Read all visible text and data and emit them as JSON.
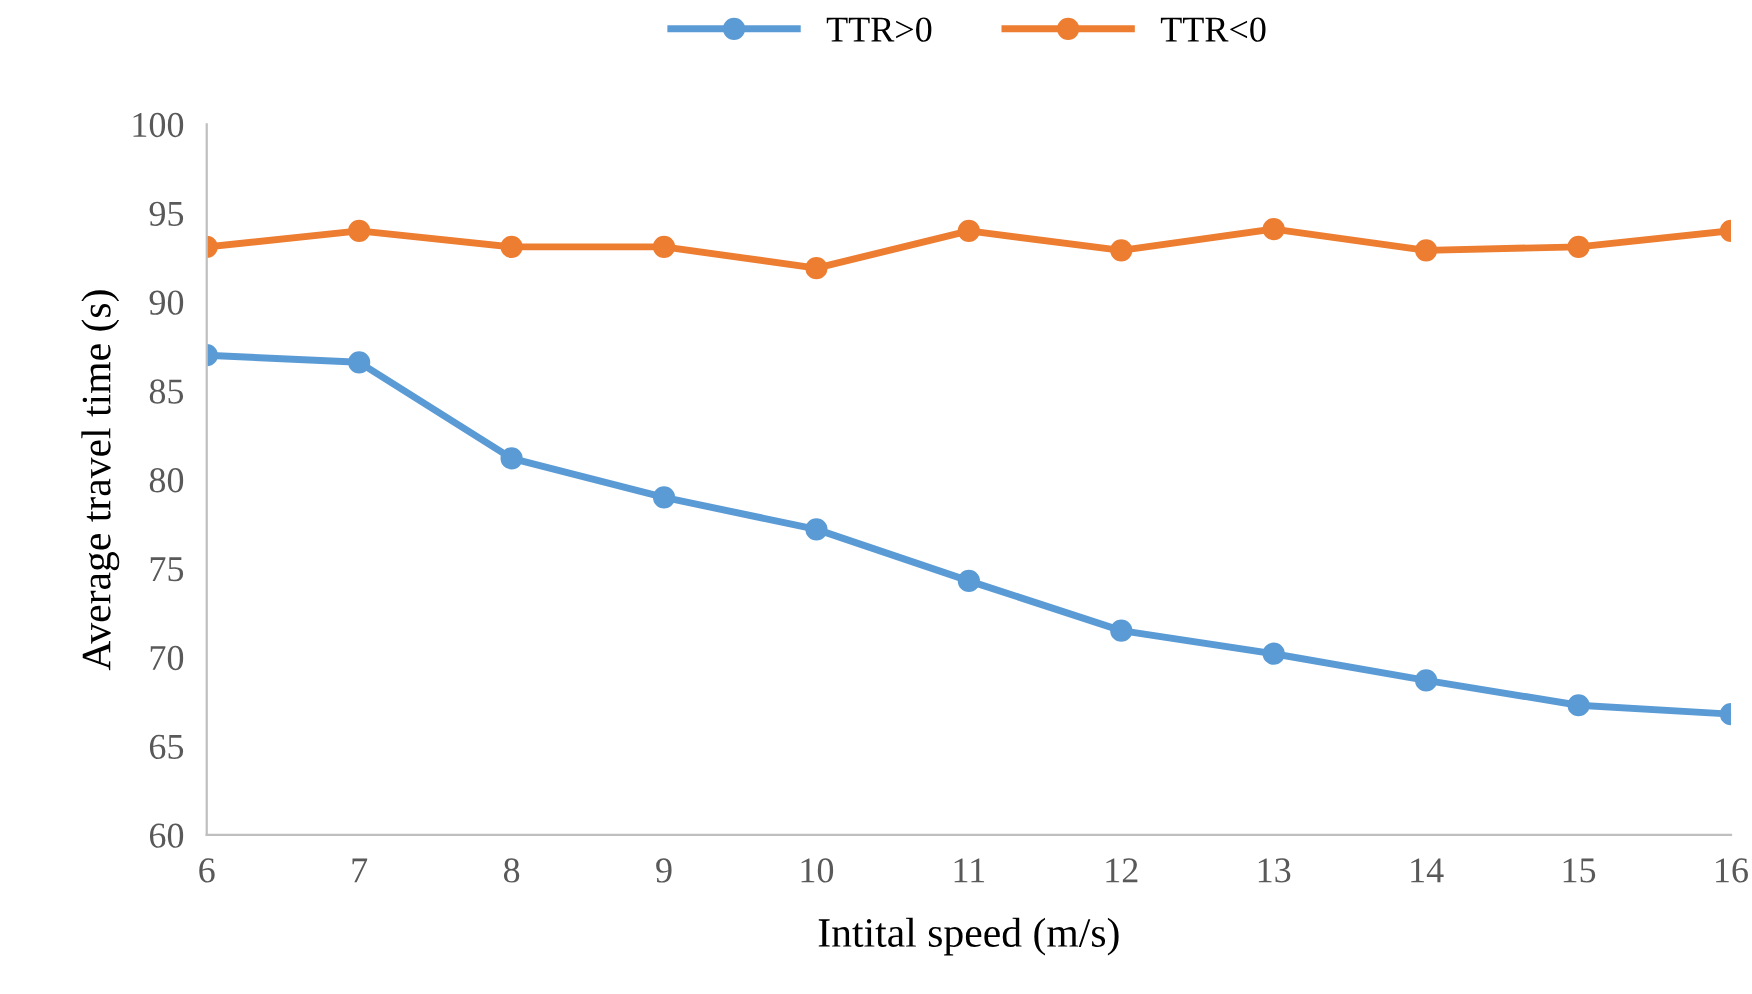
{
  "chart_data": {
    "type": "line",
    "xlabel": "Intital speed (m/s)",
    "ylabel": "Average travel time (s)",
    "x": [
      6,
      7,
      8,
      9,
      10,
      11,
      12,
      13,
      14,
      15,
      16
    ],
    "series": [
      {
        "name": "TTR>0",
        "color": "#5b9bd5",
        "values": [
          87.0,
          86.6,
          81.2,
          79.0,
          77.2,
          74.3,
          71.5,
          70.2,
          68.7,
          67.3,
          66.8
        ]
      },
      {
        "name": "TTR<0",
        "color": "#ed7d31",
        "values": [
          93.1,
          94.0,
          93.1,
          93.1,
          91.9,
          94.0,
          92.9,
          94.1,
          92.9,
          93.1,
          94.0
        ]
      }
    ],
    "xlim": [
      6,
      16
    ],
    "xticks": [
      6,
      7,
      8,
      9,
      10,
      11,
      12,
      13,
      14,
      15,
      16
    ],
    "ylim": [
      60,
      100
    ],
    "yticks": [
      60,
      65,
      70,
      75,
      80,
      85,
      90,
      95,
      100
    ],
    "grid": false,
    "legend": "top",
    "marker": "circle",
    "line_style": "solid"
  }
}
